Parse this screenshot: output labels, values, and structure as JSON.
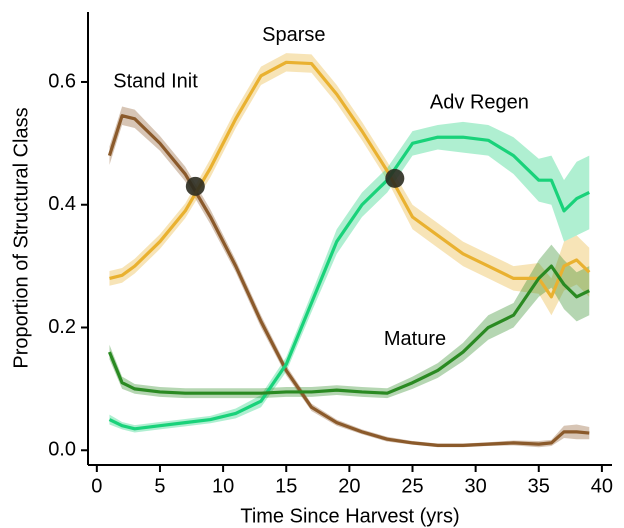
{
  "chart_data": {
    "type": "line",
    "x_label": "Time Since Harvest (yrs)",
    "y_label": "Proportion of Structural Class",
    "x": [
      1,
      2,
      3,
      5,
      7,
      9,
      11,
      13,
      15,
      17,
      19,
      21,
      23,
      25,
      27,
      29,
      31,
      33,
      35,
      36,
      37,
      38,
      39
    ],
    "series": [
      {
        "name": "Stand Init",
        "color": "#8b5a2b",
        "values": [
          0.48,
          0.545,
          0.54,
          0.5,
          0.45,
          0.38,
          0.3,
          0.21,
          0.13,
          0.07,
          0.045,
          0.03,
          0.018,
          0.012,
          0.008,
          0.008,
          0.01,
          0.012,
          0.01,
          0.012,
          0.03,
          0.03,
          0.028
        ],
        "errors": [
          0.015,
          0.015,
          0.015,
          0.012,
          0.012,
          0.012,
          0.01,
          0.01,
          0.008,
          0.006,
          0.005,
          0.004,
          0.004,
          0.003,
          0.003,
          0.003,
          0.003,
          0.004,
          0.005,
          0.005,
          0.01,
          0.012,
          0.01
        ]
      },
      {
        "name": "Sparse",
        "color": "#e9b130",
        "values": [
          0.28,
          0.285,
          0.3,
          0.34,
          0.39,
          0.46,
          0.54,
          0.61,
          0.632,
          0.63,
          0.58,
          0.52,
          0.455,
          0.38,
          0.35,
          0.32,
          0.3,
          0.28,
          0.28,
          0.25,
          0.3,
          0.31,
          0.29
        ],
        "errors": [
          0.012,
          0.012,
          0.012,
          0.012,
          0.012,
          0.015,
          0.015,
          0.015,
          0.015,
          0.015,
          0.015,
          0.015,
          0.015,
          0.02,
          0.02,
          0.02,
          0.02,
          0.02,
          0.025,
          0.03,
          0.04,
          0.04,
          0.04
        ]
      },
      {
        "name": "Adv Regen",
        "color": "#19d27a",
        "values": [
          0.05,
          0.04,
          0.035,
          0.04,
          0.045,
          0.05,
          0.06,
          0.08,
          0.14,
          0.24,
          0.34,
          0.4,
          0.44,
          0.5,
          0.51,
          0.51,
          0.505,
          0.48,
          0.44,
          0.44,
          0.39,
          0.41,
          0.42
        ],
        "errors": [
          0.008,
          0.006,
          0.006,
          0.006,
          0.006,
          0.006,
          0.008,
          0.01,
          0.012,
          0.015,
          0.02,
          0.02,
          0.02,
          0.02,
          0.02,
          0.025,
          0.025,
          0.03,
          0.035,
          0.04,
          0.05,
          0.06,
          0.06
        ]
      },
      {
        "name": "Mature",
        "color": "#2a8a22",
        "values": [
          0.16,
          0.11,
          0.1,
          0.095,
          0.093,
          0.093,
          0.093,
          0.093,
          0.095,
          0.095,
          0.098,
          0.095,
          0.093,
          0.11,
          0.13,
          0.16,
          0.2,
          0.22,
          0.28,
          0.3,
          0.27,
          0.25,
          0.26
        ],
        "errors": [
          0.012,
          0.01,
          0.008,
          0.008,
          0.008,
          0.008,
          0.008,
          0.008,
          0.008,
          0.008,
          0.008,
          0.008,
          0.008,
          0.01,
          0.012,
          0.015,
          0.02,
          0.02,
          0.03,
          0.035,
          0.04,
          0.04,
          0.04
        ]
      }
    ],
    "labels": [
      {
        "series": 0,
        "x": 1.3,
        "y": 0.6
      },
      {
        "series": 1,
        "x": 15.6,
        "y": 0.675
      },
      {
        "series": 2,
        "x": 30.3,
        "y": 0.565
      },
      {
        "series": 3,
        "x": 25.2,
        "y": 0.18
      }
    ],
    "crossings": {
      "x": [
        7.8,
        23.6
      ],
      "y": [
        0.43,
        0.443
      ],
      "color": "#2b2b20"
    },
    "xlim": [
      -0.7,
      40.8
    ],
    "ylim": [
      -0.024,
      0.714
    ],
    "xticks": [
      0,
      5,
      10,
      15,
      20,
      25,
      30,
      35,
      40
    ],
    "yticks": [
      {
        "value": 0,
        "label": "0.0"
      },
      0.2,
      0.4,
      0.6
    ]
  }
}
